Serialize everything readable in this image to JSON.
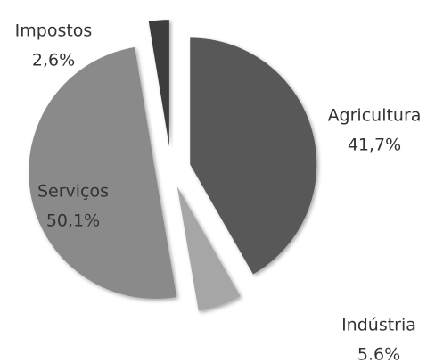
{
  "chart_data": {
    "type": "pie",
    "categories": [
      "Agricultura",
      "Indústria",
      "Serviços",
      "Impostos"
    ],
    "values": [
      41.7,
      5.6,
      50.1,
      2.6
    ],
    "value_labels": [
      "41,7%",
      "5.6%",
      "50,1%",
      "2,6%"
    ],
    "colors": [
      "#595959",
      "#a6a6a6",
      "#8a8a8a",
      "#3d3d3d"
    ]
  }
}
